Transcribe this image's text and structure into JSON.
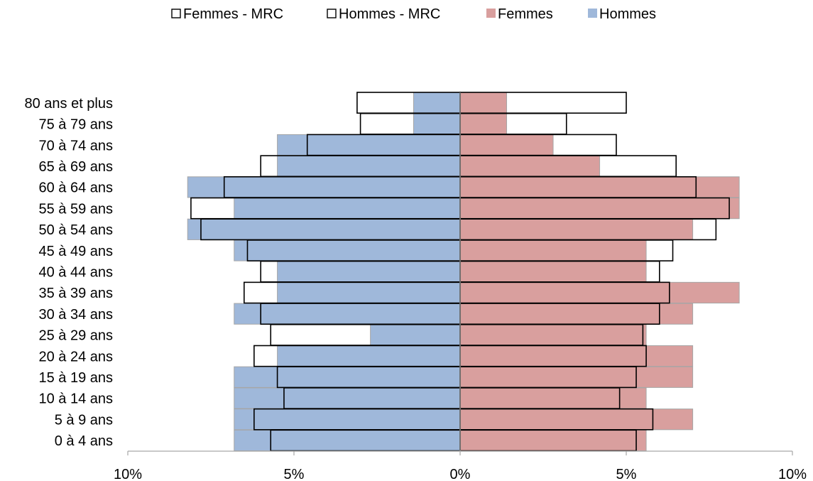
{
  "chart_data": {
    "type": "bar",
    "orientation": "horizontal",
    "layout": "population-pyramid",
    "categories": [
      "0 à 4 ans",
      "5 à 9 ans",
      "10 à 14 ans",
      "15 à 19 ans",
      "20 à 24 ans",
      "25 à 29 ans",
      "30 à 34 ans",
      "35 à 39 ans",
      "40 à 44 ans",
      "45 à 49 ans",
      "50 à 54 ans",
      "55 à 59 ans",
      "60 à 64 ans",
      "65 à 69 ans",
      "70 à 74 ans",
      "75 à 79 ans",
      "80 ans et plus"
    ],
    "series": [
      {
        "name": "Femmes - MRC",
        "side": "right",
        "style": "outline",
        "values": [
          5.3,
          5.8,
          4.8,
          5.3,
          5.6,
          5.5,
          6.0,
          6.3,
          6.0,
          6.4,
          7.7,
          8.1,
          7.1,
          6.5,
          4.7,
          3.2,
          5.0
        ]
      },
      {
        "name": "Hommes - MRC",
        "side": "left",
        "style": "outline",
        "values": [
          5.7,
          6.2,
          5.3,
          5.5,
          6.2,
          5.7,
          6.0,
          6.5,
          6.0,
          6.4,
          7.8,
          8.1,
          7.1,
          6.0,
          4.6,
          3.0,
          3.1
        ]
      },
      {
        "name": "Femmes",
        "side": "right",
        "style": "fill",
        "color": "#d99f9e",
        "values": [
          5.6,
          7.0,
          5.6,
          7.0,
          7.0,
          5.6,
          7.0,
          8.4,
          5.6,
          5.6,
          7.0,
          8.4,
          8.4,
          4.2,
          2.8,
          1.4,
          1.4
        ]
      },
      {
        "name": "Hommes",
        "side": "left",
        "style": "fill",
        "color": "#9fb8da",
        "values": [
          6.8,
          6.8,
          6.8,
          6.8,
          5.5,
          2.7,
          6.8,
          5.5,
          5.5,
          6.8,
          8.2,
          6.8,
          8.2,
          5.5,
          5.5,
          1.4,
          1.4
        ]
      }
    ],
    "xlim": [
      -10,
      10
    ],
    "x_ticks": [
      -10,
      -5,
      0,
      5,
      10
    ],
    "x_tick_labels": [
      "10%",
      "5%",
      "0%",
      "5%",
      "10%"
    ],
    "title": "",
    "xlabel": "",
    "ylabel": "",
    "legend_position": "top",
    "legend": [
      "Femmes - MRC",
      "Hommes - MRC",
      "Femmes",
      "Hommes"
    ],
    "grid": false
  }
}
